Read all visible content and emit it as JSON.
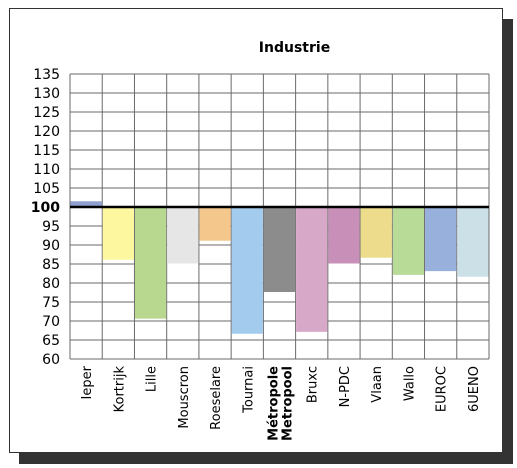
{
  "chart_data": {
    "type": "bar",
    "title": "Industrie",
    "baseline": 100,
    "ylim": [
      60,
      135
    ],
    "yticks": [
      60,
      65,
      70,
      75,
      80,
      85,
      90,
      95,
      100,
      105,
      110,
      115,
      120,
      125,
      130,
      135
    ],
    "grid": true,
    "categories": [
      "Ieper",
      "Kortrijk",
      "Lille",
      "Mouscron",
      "Roeselare",
      "Tournai",
      "Métropole Metropool",
      "Bruxc",
      "N-PDC",
      "Vlaan",
      "Wallo",
      "EUROC",
      "6UENO"
    ],
    "category_label_lines": [
      [
        "Ieper"
      ],
      [
        "Kortrijk"
      ],
      [
        "Lille"
      ],
      [
        "Mouscron"
      ],
      [
        "Roeselare"
      ],
      [
        "Tournai"
      ],
      [
        "Métropole",
        "Metropool"
      ],
      [
        "Bruxc"
      ],
      [
        "N-PDC"
      ],
      [
        "Vlaan"
      ],
      [
        "Wallo"
      ],
      [
        "EUROC"
      ],
      [
        "6UENO"
      ]
    ],
    "bold_categories": [
      "Métropole Metropool"
    ],
    "values": [
      101.5,
      86,
      70.5,
      85,
      91,
      66.5,
      77.5,
      67,
      85,
      86.5,
      82,
      83,
      81.5
    ],
    "colors": [
      "#8e9fd0",
      "#fdf8a0",
      "#b8d890",
      "#e6e6e6",
      "#f4c88c",
      "#a2cbee",
      "#8c8c8c",
      "#d8a8c8",
      "#c890b8",
      "#ecdc8c",
      "#b8dc98",
      "#98b0dc",
      "#cce0e8"
    ]
  }
}
